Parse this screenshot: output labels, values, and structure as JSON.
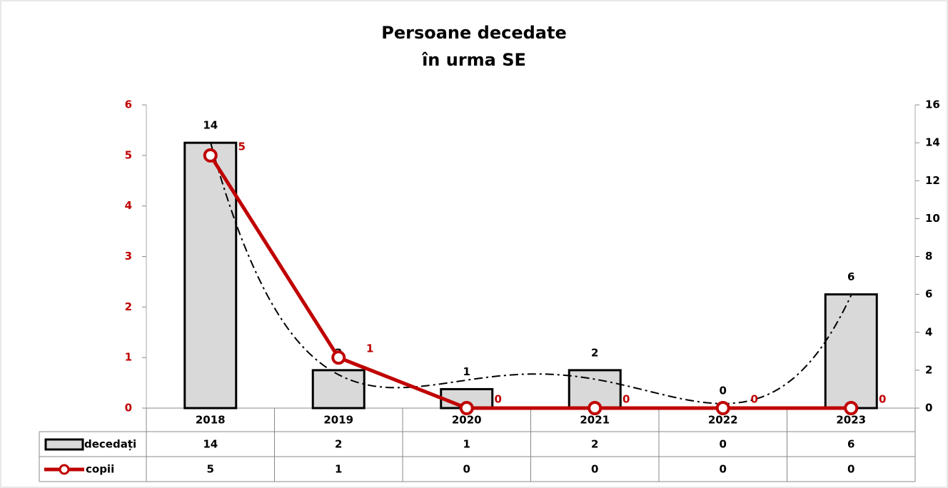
{
  "chart_data": {
    "type": "bar_line",
    "title": [
      "Persoane decedate",
      "în urma SE"
    ],
    "categories": [
      "2018",
      "2019",
      "2020",
      "2021",
      "2022",
      "2023"
    ],
    "series": [
      {
        "name": "decedați",
        "type": "bar",
        "axis": "y2",
        "color": "#d9d9d9",
        "values": [
          14,
          2,
          1,
          2,
          0,
          6
        ],
        "trendline": "polynomial"
      },
      {
        "name": "copii",
        "type": "line",
        "color": "#c00000",
        "values": [
          5,
          1,
          0,
          0,
          0,
          0
        ]
      }
    ],
    "ylim": [
      0,
      6
    ],
    "yticks": [
      0,
      1,
      2,
      3,
      4,
      5,
      6
    ],
    "y2lim": [
      0,
      16
    ],
    "y2ticks": [
      0,
      2,
      4,
      6,
      8,
      10,
      12,
      14,
      16
    ],
    "data_table": true
  }
}
